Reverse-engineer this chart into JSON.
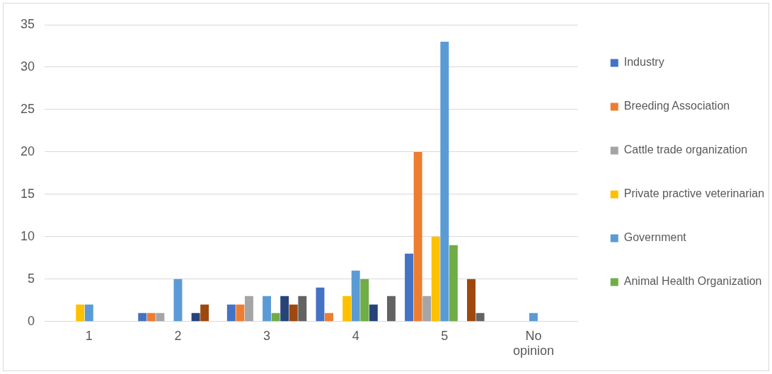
{
  "chart_data": {
    "type": "bar",
    "categories": [
      "1",
      "2",
      "3",
      "4",
      "5",
      "No opinion"
    ],
    "series": [
      {
        "name": "Industry",
        "color": "#4472c4",
        "values": [
          0,
          1,
          2,
          4,
          8,
          0
        ]
      },
      {
        "name": "Breeding Association",
        "color": "#ed7d31",
        "values": [
          0,
          1,
          2,
          1,
          20,
          0
        ]
      },
      {
        "name": "Cattle trade organization",
        "color": "#a5a5a5",
        "values": [
          0,
          1,
          3,
          0,
          3,
          0
        ]
      },
      {
        "name": "Private practive veterinarian",
        "color": "#ffc000",
        "values": [
          2,
          0,
          0,
          3,
          10,
          0
        ]
      },
      {
        "name": "Government",
        "color": "#5b9bd5",
        "values": [
          2,
          5,
          3,
          6,
          33,
          1
        ]
      },
      {
        "name": "Animal Health Organization",
        "color": "#70ad47",
        "values": [
          0,
          0,
          1,
          5,
          9,
          0
        ]
      },
      {
        "color": "#264478",
        "values": [
          0,
          1,
          3,
          2,
          0,
          0
        ]
      },
      {
        "color": "#9e480e",
        "values": [
          0,
          2,
          2,
          0,
          5,
          0
        ]
      },
      {
        "color": "#636363",
        "values": [
          0,
          0,
          3,
          3,
          1,
          0
        ]
      }
    ],
    "ylim": [
      0,
      35
    ],
    "yticks": [
      0,
      5,
      10,
      15,
      20,
      25,
      30,
      35
    ],
    "grid": "y",
    "legend": "right"
  }
}
